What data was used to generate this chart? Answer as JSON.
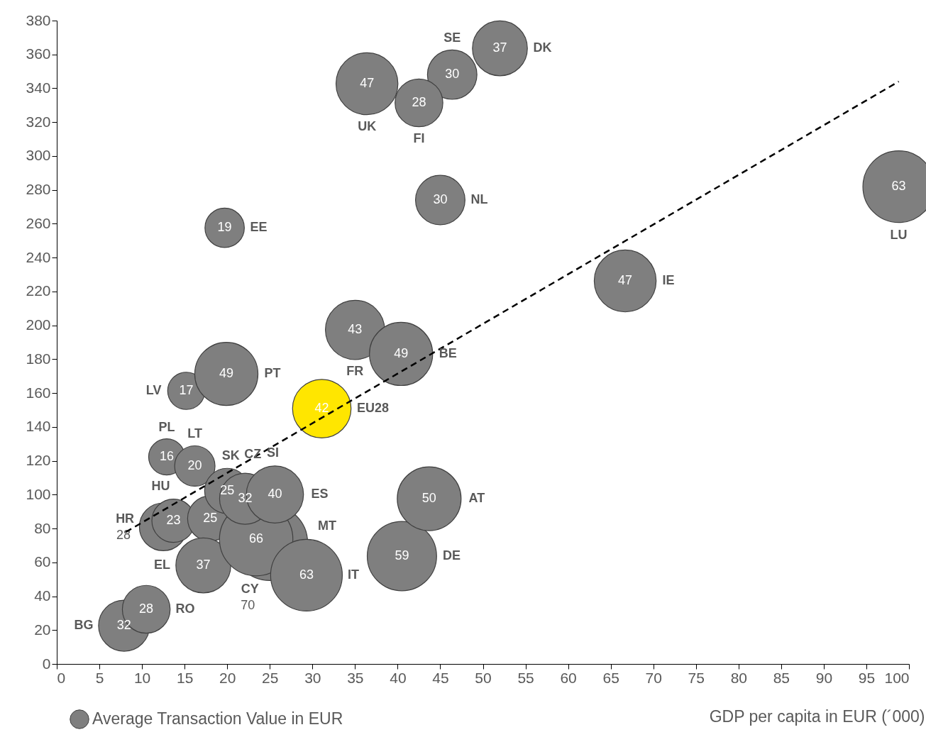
{
  "chart_data": {
    "type": "bubble",
    "xlabel": "GDP per capita in EUR (´000)",
    "xlim": [
      0,
      100
    ],
    "xticks": [
      0,
      5,
      10,
      15,
      20,
      25,
      30,
      35,
      40,
      45,
      50,
      55,
      60,
      65,
      70,
      75,
      80,
      85,
      90,
      95,
      100
    ],
    "ylim": [
      0,
      380
    ],
    "yticks": [
      0,
      20,
      40,
      60,
      80,
      100,
      120,
      140,
      160,
      180,
      200,
      220,
      240,
      260,
      280,
      300,
      320,
      340,
      360,
      380
    ],
    "grid": false,
    "legend": "bottom left",
    "series": [
      {
        "name": "Average  Transaction Value in EUR",
        "color": "#7f7f7f",
        "type": "bubble",
        "colors": [
          "#7f7f7f",
          "#7f7f7f",
          "#7f7f7f",
          "#7f7f7f",
          "#7f7f7f",
          "#7f7f7f",
          "#7f7f7f",
          "#7f7f7f",
          "#7f7f7f",
          "#7f7f7f",
          "#7f7f7f",
          "#7f7f7f",
          "#7f7f7f",
          "#7f7f7f",
          "#7f7f7f",
          "#7f7f7f",
          "#7f7f7f",
          "#7f7f7f",
          "#7f7f7f",
          "#7f7f7f",
          "#ffe600",
          "#7f7f7f",
          "#7f7f7f",
          "#7f7f7f",
          "#7f7f7f",
          "#7f7f7f",
          "#7f7f7f",
          "#7f7f7f",
          "#7f7f7f"
        ],
        "x": [
          7.9,
          10.5,
          12.5,
          13.7,
          18.0,
          17.2,
          25.0,
          23.4,
          29.3,
          12.9,
          16.2,
          20.0,
          22.1,
          25.6,
          15.2,
          19.9,
          19.7,
          35.0,
          40.4,
          40.5,
          31.1,
          43.7,
          66.7,
          98.8,
          45.0,
          36.4,
          46.4,
          42.5,
          52.0
        ],
        "values": [
          22.6,
          32.3,
          81,
          84.6,
          85.9,
          58.2,
          71.6,
          73.7,
          52.4,
          122.3,
          116.9,
          102.2,
          97.6,
          100.1,
          161.3,
          171.3,
          257.6,
          197.3,
          183.1,
          63.7,
          150.8,
          97.6,
          226.2,
          281.9,
          274.0,
          342.7,
          348.1,
          331.4,
          363.6
        ],
        "sizes": [
          32,
          28,
          28,
          23,
          25,
          37,
          70,
          66,
          63,
          16,
          20,
          25,
          32,
          40,
          17,
          49,
          19,
          43,
          49,
          59,
          42,
          50,
          47,
          63,
          30,
          47,
          30,
          28,
          37
        ],
        "value_labels": [
          "32",
          "28",
          "28",
          "23",
          "25",
          "37",
          "70",
          "66",
          "63",
          "16",
          "20",
          "25",
          "32",
          "40",
          "17",
          "49",
          "19",
          "43",
          "49",
          "59",
          "42",
          "50",
          "47",
          "63",
          "30",
          "47",
          "30",
          "28",
          "37"
        ]
      },
      {
        "type": "line",
        "color": "#000000",
        "line_style": "dashed",
        "marker": "none",
        "x": [
          8.1,
          98.8
        ],
        "values": [
          77.9,
          344
        ]
      }
    ],
    "annotations": [
      {
        "text": "BG",
        "x": 7.9,
        "y": 22.6
      },
      {
        "text": "RO",
        "x": 10.5,
        "y": 32.3
      },
      {
        "text": "HR",
        "x": 12.5,
        "y": 81
      },
      {
        "text": "HU",
        "x": 13.7,
        "y": 84.6
      },
      "SK",
      {
        "text": "EL",
        "x": 17.2,
        "y": 58.2
      },
      "CY",
      "MT",
      "IT",
      {
        "text": "PL",
        "x": 12.9,
        "y": 122.3
      },
      {
        "text": "LT",
        "x": 16.2,
        "y": 116.9
      },
      {
        "text": "CZ",
        "x": 20.0,
        "y": 102.2
      },
      "SI",
      {
        "text": "ES",
        "x": 25.6,
        "y": 100.1
      },
      {
        "text": "LV",
        "x": 15.2,
        "y": 161.3
      },
      {
        "text": "PT",
        "x": 19.9,
        "y": 171.3
      },
      {
        "text": "EE",
        "x": 19.7,
        "y": 257.6
      },
      {
        "text": "FR",
        "x": 35.0,
        "y": 197.3
      },
      {
        "text": "BE",
        "x": 40.4,
        "y": 183.1
      },
      "DE",
      {
        "text": "EU28",
        "x": 31.1,
        "y": 150.8
      },
      "AT",
      {
        "text": "IE",
        "x": 66.7,
        "y": 226.2
      },
      "LU",
      {
        "text": "NL",
        "x": 45.0,
        "y": 274.0
      },
      {
        "text": "UK",
        "x": 36.4,
        "y": 342.7
      },
      {
        "text": "SE",
        "x": 46.4,
        "y": 348.1
      },
      {
        "text": "FI",
        "x": 42.5,
        "y": 331.4
      },
      {
        "text": "DK",
        "x": 52.0,
        "y": 363.6
      }
    ]
  }
}
